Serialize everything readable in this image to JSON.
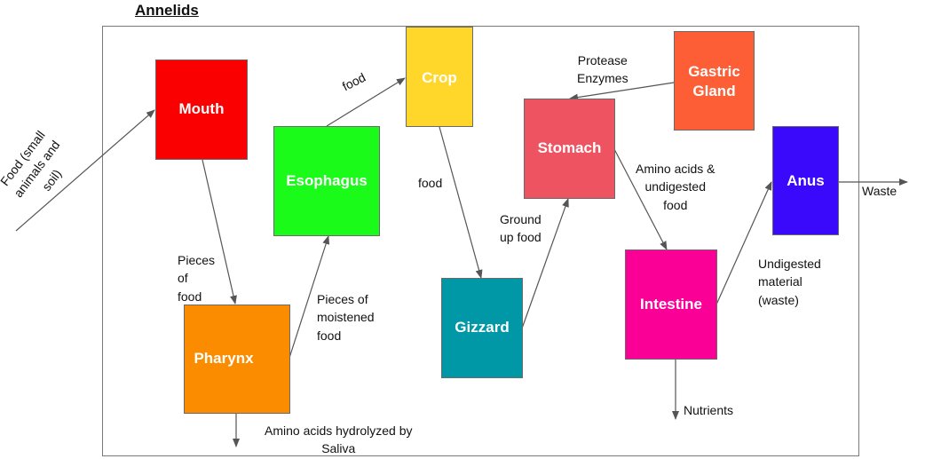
{
  "title": "Annelids",
  "organs": {
    "mouth": "Mouth",
    "pharynx": "Pharynx",
    "esophagus": "Esophagus",
    "crop": "Crop",
    "gizzard": "Gizzard",
    "stomach": "Stomach",
    "gastric_gland": "Gastric\nGland",
    "intestine": "Intestine",
    "anus": "Anus"
  },
  "colors": {
    "mouth": "#fb0000",
    "pharynx": "#fb8c00",
    "esophagus": "#1afb1a",
    "crop": "#ffd62a",
    "gizzard": "#0097a7",
    "stomach": "#ee5362",
    "gastric_gland": "#fd5e36",
    "intestine": "#fb0096",
    "anus": "#3a08fb"
  },
  "labels": {
    "food_input": "Food (small\nanimals and\nsoil)",
    "pieces_of_food": "Pieces\nof\nfood",
    "pieces_of_moistened_food": "Pieces of\nmoistened\nfood",
    "food_to_crop": "food",
    "food_to_gizzard": "food",
    "ground_up_food": "Ground\nup food",
    "protease_enzymes": "Protease\nEnzymes",
    "amino_acids_undigested": "Amino acids &\nundigested\nfood",
    "undigested_material": "Undigested\nmaterial\n(waste)",
    "waste": "Waste",
    "nutrients": "Nutrients",
    "amino_acids_saliva": "Amino acids hydrolyzed by\nSaliva"
  }
}
